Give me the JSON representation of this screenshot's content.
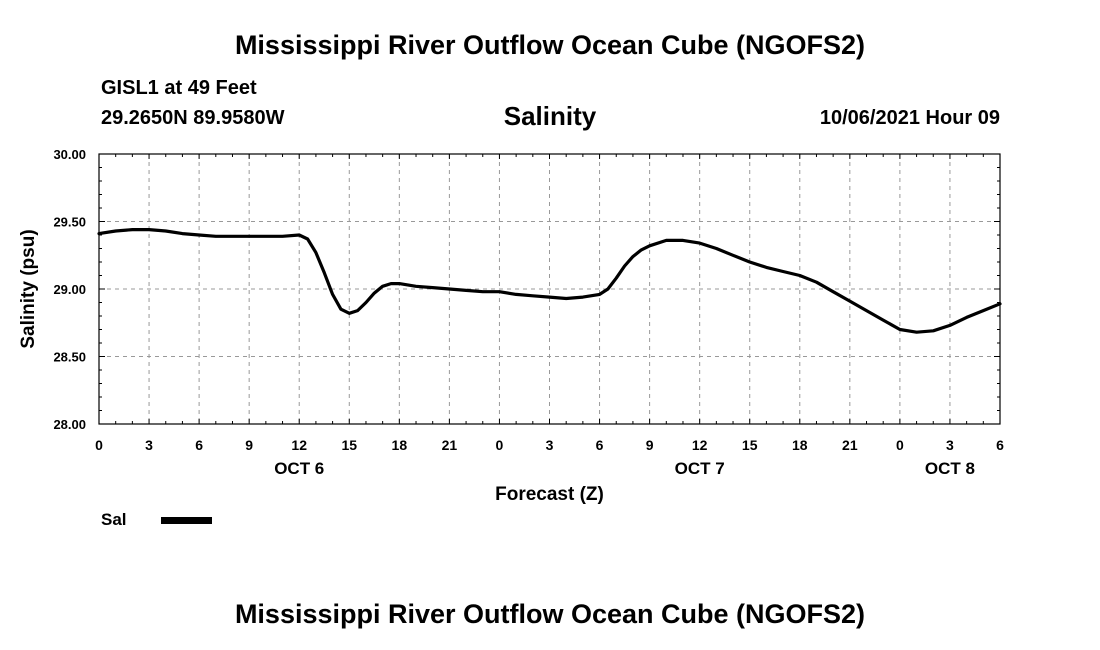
{
  "header": {
    "main_title": "Mississippi River Outflow Ocean Cube (NGOFS2)",
    "footer_title": "Mississippi River Outflow Ocean Cube (NGOFS2)",
    "station_name": "GISL1 at 49 Feet",
    "station_coords": "29.2650N  89.9580W",
    "run_time": "10/06/2021 Hour 09"
  },
  "legend": {
    "label": "Sal"
  },
  "colors": {
    "line": "#000000",
    "grid": "#999999",
    "frame": "#000000"
  },
  "chart_data": {
    "type": "line",
    "title": "Salinity",
    "xlabel": "Forecast (Z)",
    "ylabel": "Salinity (psu)",
    "xlim": [
      0,
      54
    ],
    "ylim": [
      28.0,
      30.0
    ],
    "grid": true,
    "x_ticks": [
      0,
      3,
      6,
      9,
      12,
      15,
      18,
      21,
      24,
      27,
      30,
      33,
      36,
      39,
      42,
      45,
      48,
      51,
      54
    ],
    "x_tick_labels": [
      "0",
      "3",
      "6",
      "9",
      "12",
      "15",
      "18",
      "21",
      "0",
      "3",
      "6",
      "9",
      "12",
      "15",
      "18",
      "21",
      "0",
      "3",
      "6"
    ],
    "day_labels": [
      {
        "x": 12,
        "label": "OCT 6"
      },
      {
        "x": 36,
        "label": "OCT 7"
      },
      {
        "x": 51,
        "label": "OCT 8"
      }
    ],
    "y_ticks": [
      28.0,
      28.5,
      29.0,
      29.5,
      30.0
    ],
    "y_tick_labels": [
      "28.00",
      "28.50",
      "29.00",
      "29.50",
      "30.00"
    ],
    "series": [
      {
        "name": "Sal",
        "x": [
          0,
          1,
          2,
          3,
          4,
          5,
          6,
          7,
          8,
          9,
          10,
          11,
          12,
          12.5,
          13,
          13.5,
          14,
          14.5,
          15,
          15.5,
          16,
          16.5,
          17,
          17.5,
          18,
          19,
          20,
          21,
          22,
          23,
          24,
          25,
          26,
          27,
          28,
          29,
          30,
          30.5,
          31,
          31.5,
          32,
          32.5,
          33,
          34,
          35,
          36,
          37,
          38,
          39,
          40,
          41,
          42,
          43,
          44,
          45,
          46,
          47,
          48,
          49,
          50,
          51,
          52,
          53,
          54
        ],
        "values": [
          29.41,
          29.43,
          29.44,
          29.44,
          29.43,
          29.41,
          29.4,
          29.39,
          29.39,
          29.39,
          29.39,
          29.39,
          29.4,
          29.37,
          29.27,
          29.12,
          28.96,
          28.85,
          28.82,
          28.84,
          28.9,
          28.97,
          29.02,
          29.04,
          29.04,
          29.02,
          29.01,
          29.0,
          28.99,
          28.98,
          28.98,
          28.96,
          28.95,
          28.94,
          28.93,
          28.94,
          28.96,
          29.0,
          29.08,
          29.17,
          29.24,
          29.29,
          29.32,
          29.36,
          29.36,
          29.34,
          29.3,
          29.25,
          29.2,
          29.16,
          29.13,
          29.1,
          29.05,
          28.98,
          28.91,
          28.84,
          28.77,
          28.7,
          28.68,
          28.69,
          28.73,
          28.79,
          28.84,
          28.89
        ]
      }
    ]
  }
}
